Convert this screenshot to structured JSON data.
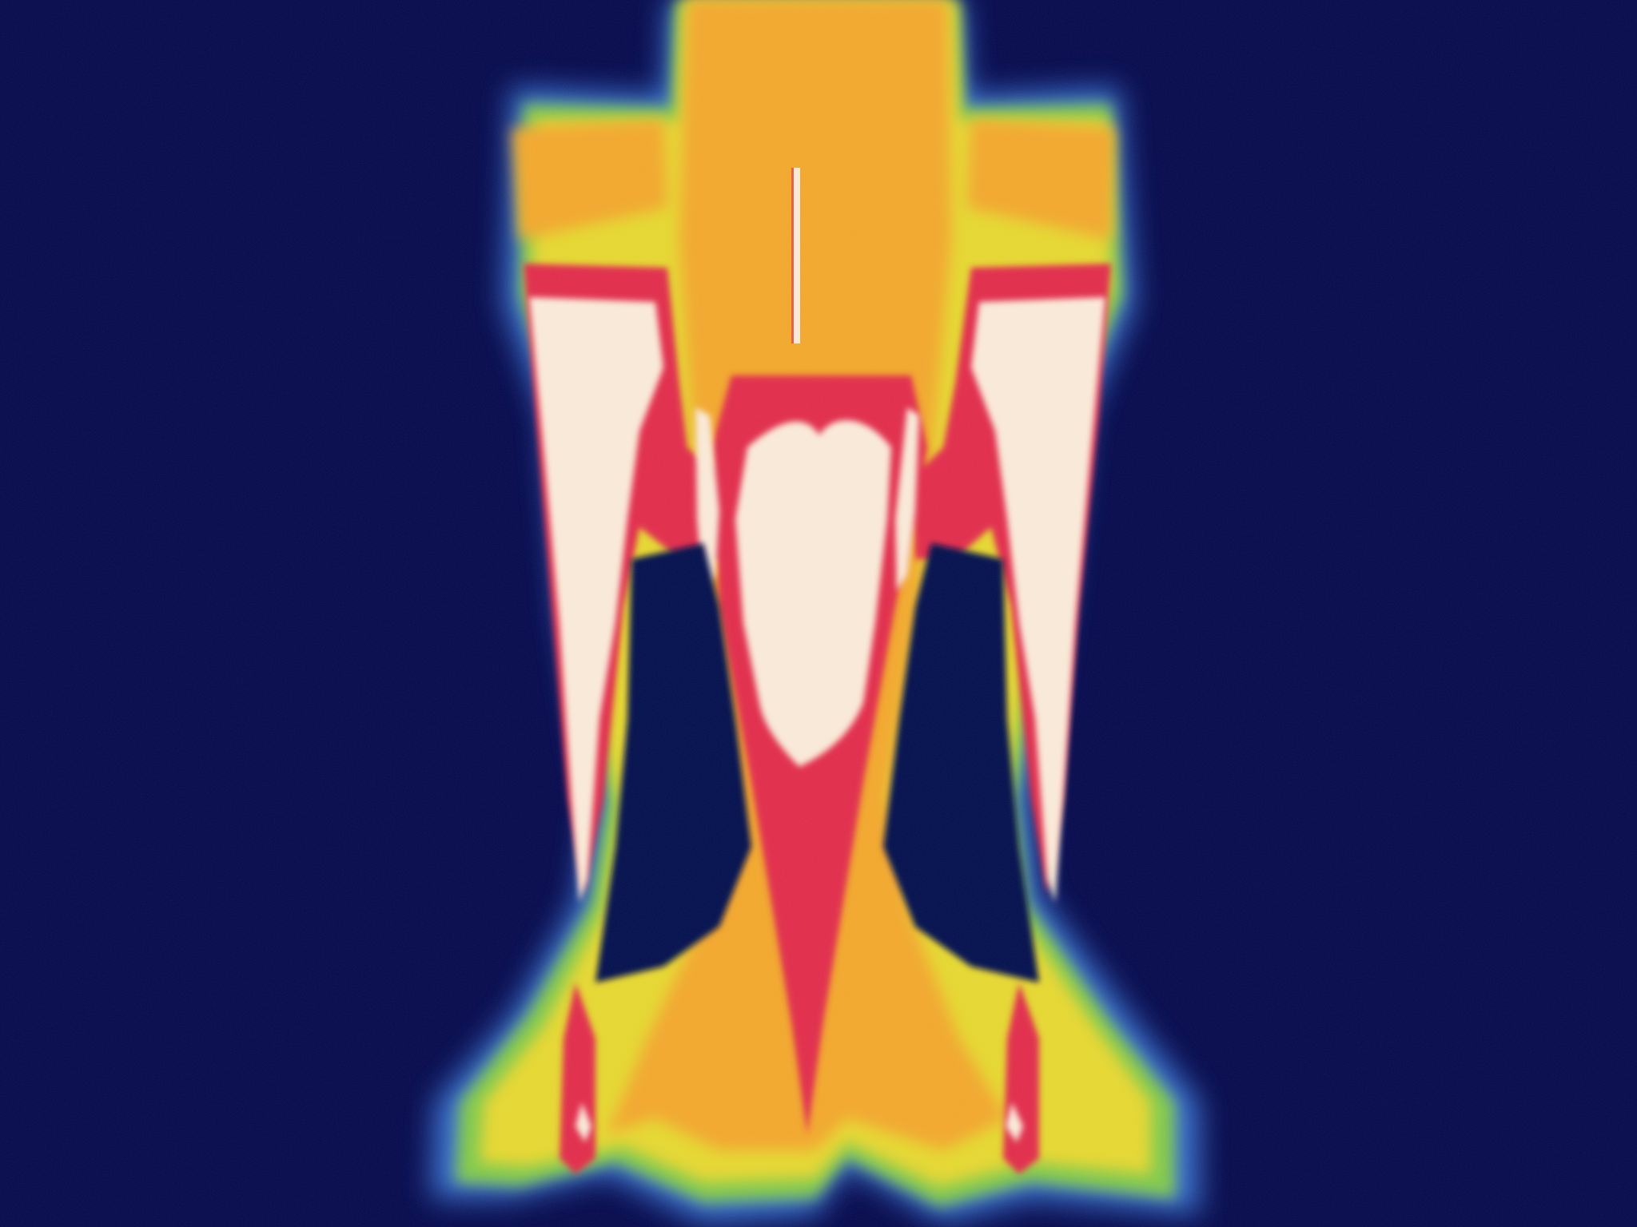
{
  "image": {
    "kind": "false-color thermal image",
    "palette": {
      "background": "#03074b",
      "cool_blue": "#3a78d8",
      "green": "#7fc84a",
      "yellow": "#e4d62e",
      "orange": "#f1a62a",
      "red": "#e02a4a",
      "hot_white": "#f9e8d6"
    }
  }
}
